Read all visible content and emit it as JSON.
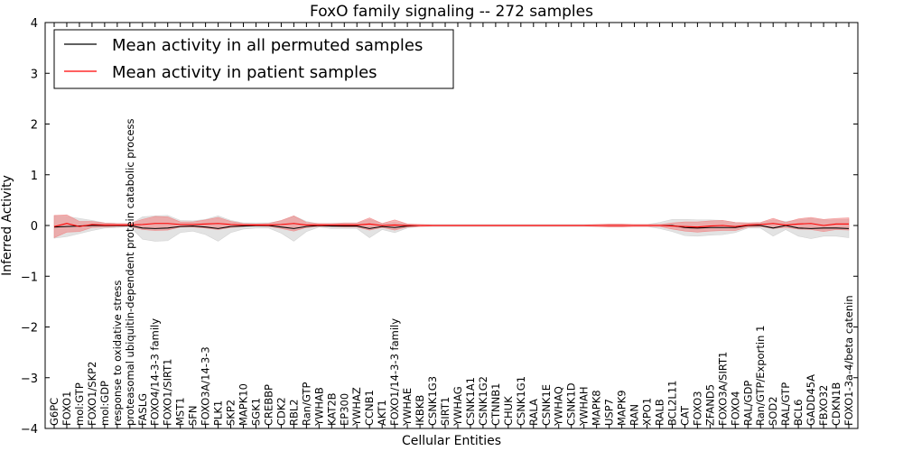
{
  "chart_data": {
    "type": "line",
    "title": "FoxO family signaling -- 272 samples",
    "xlabel": "Cellular Entities",
    "ylabel": "Inferred Activity",
    "ylim": [
      -4,
      4
    ],
    "yticks": [
      -4,
      -3,
      -2,
      -1,
      0,
      1,
      2,
      3,
      4
    ],
    "ytick_labels": [
      "−4",
      "−3",
      "−2",
      "−1",
      "0",
      "1",
      "2",
      "3",
      "4"
    ],
    "legend_position": "top-left",
    "categories": [
      "G6PC",
      "FOXO1",
      "mol:GTP",
      "FOXO1/SKP2",
      "mol:GDP",
      "response to oxidative stress",
      "proteasomal ubiquitin-dependent protein catabolic process",
      "FASLG",
      "FOXO4/14-3-3 family",
      "FOXO1/SIRT1",
      "MST1",
      "SFN",
      "FOXO3A/14-3-3",
      "PLK1",
      "SKP2",
      "MAPK10",
      "SGK1",
      "CREBBP",
      "CDK2",
      "RBL2",
      "Ran/GTP",
      "YWHAB",
      "KAT2B",
      "EP300",
      "YWHAZ",
      "CCNB1",
      "AKT1",
      "FOXO1/14-3-3 family",
      "YWHAE",
      "IKBKB",
      "CSNK1G3",
      "SIRT1",
      "YWHAG",
      "CSNK1A1",
      "CSNK1G2",
      "CTNNB1",
      "CHUK",
      "CSNK1G1",
      "RALA",
      "CSNK1E",
      "YWHAQ",
      "CSNK1D",
      "YWHAH",
      "MAPK8",
      "USP7",
      "MAPK9",
      "RAN",
      "XPO1",
      "RALB",
      "BCL2L11",
      "CAT",
      "FOXO3",
      "ZFAND5",
      "FOXO3A/SIRT1",
      "FOXO4",
      "RAL/GDP",
      "Ran/GTP/Exportin 1",
      "SOD2",
      "RAL/GTP",
      "BCL6",
      "GADD45A",
      "FBXO32",
      "CDKN1B",
      "FOXO1-3a-4/beta catenin"
    ],
    "series": [
      {
        "name": "Mean activity in all permuted samples",
        "color": "#000000",
        "values": [
          -0.03,
          -0.02,
          -0.01,
          0,
          0,
          0,
          0,
          -0.05,
          -0.06,
          -0.05,
          -0.02,
          -0.01,
          -0.03,
          -0.06,
          -0.02,
          -0.01,
          0,
          0,
          -0.03,
          -0.06,
          -0.02,
          0,
          -0.01,
          -0.01,
          -0.01,
          -0.06,
          -0.02,
          -0.04,
          -0.01,
          0,
          0,
          0,
          0,
          0,
          0,
          0,
          0,
          0,
          0,
          0,
          0,
          0,
          0,
          0,
          0,
          0,
          0,
          0,
          0,
          0,
          -0.04,
          -0.05,
          -0.04,
          -0.04,
          -0.04,
          0,
          0,
          -0.05,
          0,
          -0.05,
          -0.06,
          -0.05,
          -0.05,
          -0.06
        ],
        "band": [
          0.22,
          0.2,
          0.15,
          0.1,
          0.05,
          0.04,
          0.02,
          0.22,
          0.25,
          0.25,
          0.12,
          0.1,
          0.15,
          0.25,
          0.12,
          0.06,
          0.05,
          0.05,
          0.12,
          0.25,
          0.1,
          0.03,
          0.05,
          0.05,
          0.05,
          0.18,
          0.06,
          0.1,
          0.04,
          0.02,
          0.02,
          0.02,
          0.02,
          0.02,
          0.02,
          0.02,
          0.02,
          0.02,
          0.02,
          0.02,
          0.02,
          0.02,
          0.02,
          0.02,
          0.02,
          0.02,
          0.02,
          0.02,
          0.06,
          0.12,
          0.16,
          0.16,
          0.15,
          0.14,
          0.1,
          0.05,
          0.05,
          0.16,
          0.08,
          0.16,
          0.2,
          0.16,
          0.16,
          0.18
        ],
        "band_color": "#cccccc"
      },
      {
        "name": "Mean activity in patient samples",
        "color": "#ff0000",
        "values": [
          -0.02,
          0.04,
          -0.02,
          0.02,
          0.01,
          0.01,
          0.01,
          0.02,
          0.04,
          0.04,
          0.02,
          0.02,
          0.03,
          0.04,
          0.02,
          0.01,
          0.01,
          0.01,
          0.02,
          0.04,
          0.01,
          0.01,
          0.01,
          0.01,
          0.01,
          0.03,
          0,
          0.01,
          0,
          0,
          0,
          0,
          0,
          0,
          0,
          0,
          0,
          0,
          0,
          0,
          0,
          0,
          0,
          0,
          0,
          0,
          0,
          0,
          0,
          -0.01,
          -0.02,
          -0.03,
          -0.01,
          0,
          -0.02,
          0.01,
          0.02,
          0.04,
          0.01,
          0.03,
          0.04,
          0,
          0.03,
          0.03
        ],
        "band": [
          0.22,
          0.17,
          0.1,
          0.06,
          0.04,
          0.03,
          0.03,
          0.1,
          0.14,
          0.13,
          0.05,
          0.05,
          0.08,
          0.12,
          0.06,
          0.03,
          0.02,
          0.03,
          0.08,
          0.15,
          0.05,
          0.03,
          0.03,
          0.04,
          0.04,
          0.12,
          0.04,
          0.1,
          0.03,
          0.02,
          0.01,
          0.01,
          0.01,
          0.01,
          0.01,
          0.01,
          0.01,
          0.01,
          0.01,
          0.01,
          0.01,
          0.01,
          0.01,
          0.02,
          0.03,
          0.03,
          0.02,
          0.02,
          0.02,
          0.06,
          0.09,
          0.1,
          0.1,
          0.1,
          0.08,
          0.04,
          0.04,
          0.1,
          0.05,
          0.1,
          0.12,
          0.12,
          0.11,
          0.12
        ],
        "band_color": "#f08080"
      }
    ]
  }
}
